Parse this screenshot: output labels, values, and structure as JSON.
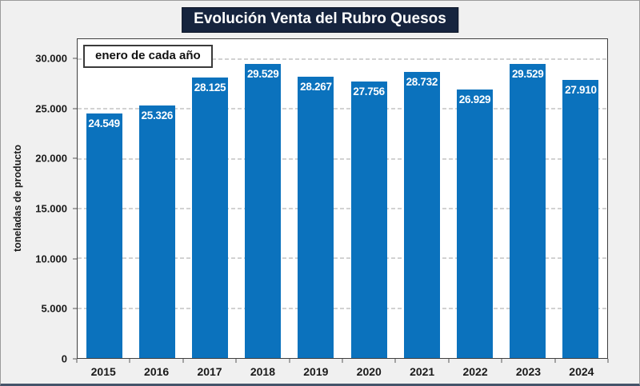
{
  "chart_data": {
    "type": "bar",
    "title": "Evolución Venta del Rubro Quesos",
    "annotation": "enero de cada año",
    "ylabel": "toneladas de producto",
    "xlabel": "",
    "categories": [
      "2015",
      "2016",
      "2017",
      "2018",
      "2019",
      "2020",
      "2021",
      "2022",
      "2023",
      "2024"
    ],
    "values": [
      24549,
      25326,
      28125,
      29529,
      28267,
      27756,
      28732,
      26929,
      29529,
      27910
    ],
    "bar_labels": [
      "24.549",
      "25.326",
      "28.125",
      "29.529",
      "28.267",
      "27.756",
      "28.732",
      "26.929",
      "29.529",
      "27.910"
    ],
    "y_ticks": [
      {
        "value": 0,
        "label": "0"
      },
      {
        "value": 5000,
        "label": "5.000"
      },
      {
        "value": 10000,
        "label": "10.000"
      },
      {
        "value": 15000,
        "label": "15.000"
      },
      {
        "value": 20000,
        "label": "20.000"
      },
      {
        "value": 25000,
        "label": "25.000"
      },
      {
        "value": 30000,
        "label": "30.000"
      }
    ],
    "ylim": [
      0,
      32000
    ],
    "grid": "horizontal-dashed",
    "legend": "none",
    "colors": {
      "bar": "#0b72bd",
      "title_background": "#16243e",
      "title_text": "#ffffff",
      "bar_label_text": "#ffffff",
      "gridline": "#a6a6a6",
      "plot_background": "#ffffff",
      "outer_background": "#f0f0f0",
      "axis_text": "#1a1a1a"
    }
  }
}
